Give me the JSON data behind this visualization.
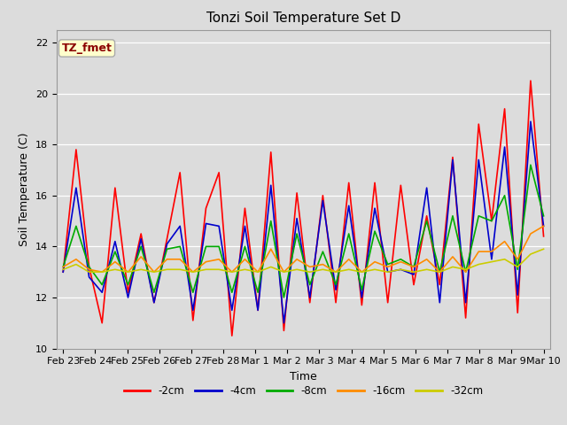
{
  "title": "Tonzi Soil Temperature Set D",
  "xlabel": "Time",
  "ylabel": "Soil Temperature (C)",
  "ylim": [
    10,
    22.5
  ],
  "xlim_days": 16,
  "annotation": "TZ_fmet",
  "annotation_color": "#8B0000",
  "annotation_bg": "#FFFFCC",
  "annotation_border": "#AAAAAA",
  "series": {
    "-2cm": {
      "color": "#FF0000",
      "linewidth": 1.2,
      "data": [
        13.0,
        17.8,
        13.2,
        11.0,
        16.3,
        12.2,
        14.5,
        11.8,
        14.3,
        16.9,
        11.1,
        15.5,
        16.9,
        10.5,
        15.5,
        11.5,
        17.7,
        10.7,
        16.1,
        11.8,
        16.0,
        11.8,
        16.5,
        11.7,
        16.5,
        11.8,
        16.4,
        12.5,
        15.2,
        12.5,
        17.5,
        11.2,
        18.8,
        15.0,
        19.4,
        11.4,
        20.5,
        14.4
      ]
    },
    "-4cm": {
      "color": "#0000CC",
      "linewidth": 1.2,
      "data": [
        13.0,
        16.3,
        12.8,
        12.2,
        14.2,
        12.0,
        14.3,
        11.8,
        14.1,
        14.8,
        11.5,
        14.9,
        14.8,
        11.5,
        14.8,
        11.5,
        16.4,
        11.0,
        15.1,
        12.0,
        15.8,
        12.3,
        15.6,
        12.0,
        15.5,
        13.0,
        13.1,
        12.9,
        16.3,
        11.8,
        17.4,
        11.8,
        17.4,
        13.5,
        17.9,
        12.1,
        18.9,
        14.8
      ]
    },
    "-8cm": {
      "color": "#00AA00",
      "linewidth": 1.2,
      "data": [
        13.2,
        14.8,
        13.2,
        12.5,
        13.8,
        12.5,
        14.0,
        12.2,
        13.9,
        14.0,
        12.2,
        14.0,
        14.0,
        12.2,
        14.0,
        12.2,
        15.0,
        12.0,
        14.5,
        12.5,
        13.8,
        12.5,
        14.5,
        12.3,
        14.6,
        13.3,
        13.5,
        13.2,
        15.0,
        13.0,
        15.2,
        13.0,
        15.2,
        15.0,
        16.0,
        13.1,
        17.2,
        15.2
      ]
    },
    "-16cm": {
      "color": "#FF8C00",
      "linewidth": 1.2,
      "data": [
        13.2,
        13.5,
        13.1,
        13.0,
        13.4,
        13.0,
        13.6,
        13.0,
        13.5,
        13.5,
        13.0,
        13.4,
        13.5,
        13.0,
        13.5,
        13.0,
        13.9,
        13.0,
        13.5,
        13.2,
        13.3,
        13.0,
        13.5,
        13.0,
        13.4,
        13.2,
        13.4,
        13.2,
        13.5,
        13.0,
        13.6,
        13.0,
        13.8,
        13.8,
        14.2,
        13.5,
        14.5,
        14.8
      ]
    },
    "-32cm": {
      "color": "#CCCC00",
      "linewidth": 1.2,
      "data": [
        13.1,
        13.3,
        13.0,
        13.0,
        13.1,
        13.0,
        13.1,
        13.0,
        13.1,
        13.1,
        13.0,
        13.1,
        13.1,
        13.0,
        13.1,
        13.0,
        13.2,
        13.0,
        13.1,
        13.0,
        13.1,
        13.0,
        13.1,
        13.0,
        13.1,
        13.0,
        13.1,
        13.0,
        13.1,
        13.0,
        13.2,
        13.1,
        13.3,
        13.4,
        13.5,
        13.2,
        13.7,
        13.9
      ]
    }
  },
  "xtick_labels": [
    "Feb 23",
    "Feb 24",
    "Feb 25",
    "Feb 26",
    "Feb 27",
    "Feb 28",
    "Mar 1",
    "Mar 2",
    "Mar 3",
    "Mar 4",
    "Mar 5",
    "Mar 6",
    "Mar 7",
    "Mar 8",
    "Mar 9",
    "Mar 10"
  ],
  "xtick_positions": [
    0,
    1,
    2,
    3,
    4,
    5,
    6,
    7,
    8,
    9,
    10,
    11,
    12,
    13,
    14,
    15
  ],
  "ytick_positions": [
    10,
    12,
    14,
    16,
    18,
    20,
    22
  ],
  "ytick_labels": [
    "10",
    "12",
    "14",
    "16",
    "18",
    "20",
    "22"
  ],
  "plot_bg_color": "#DCDCDC",
  "fig_bg_color": "#DCDCDC",
  "grid_color": "#FFFFFF",
  "title_fontsize": 11,
  "axis_label_fontsize": 9,
  "tick_fontsize": 8
}
